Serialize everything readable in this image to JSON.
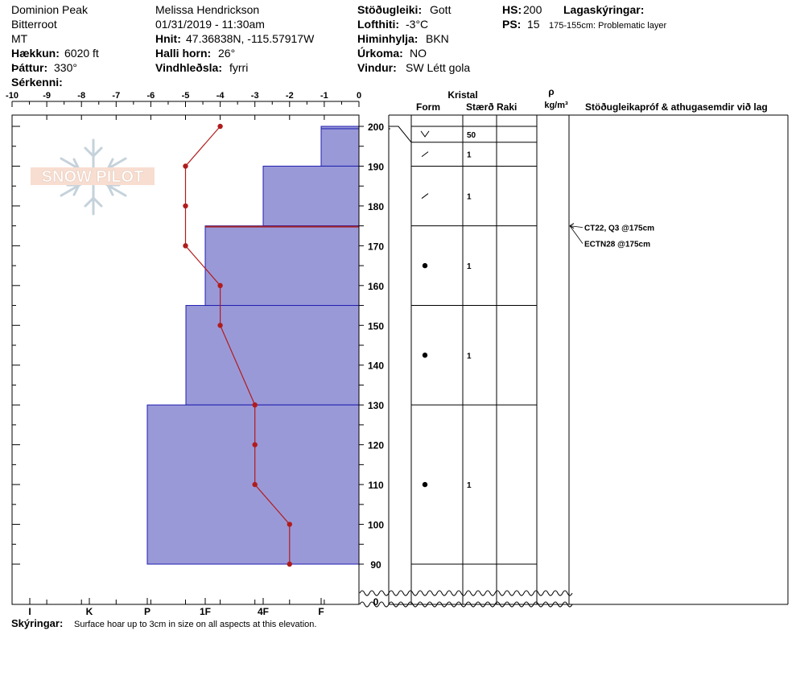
{
  "header": {
    "col1": {
      "location": "Dominion Peak",
      "range": "Bitterroot",
      "state": "MT",
      "elevation_label": "Hækkun:",
      "elevation_value": "6020 ft",
      "aspect_label": "Þáttur:",
      "aspect_value": "330°",
      "special_label": "Sérkenni:"
    },
    "col2": {
      "observer": "Melissa Hendrickson",
      "datetime": "01/31/2019 - 11:30am",
      "coords_label": "Hnit:",
      "coords_value": "47.36838N, -115.57917W",
      "slope_label": "Halli horn:",
      "slope_value": "26°",
      "wind_loading_label": "Vindhleðsla:",
      "wind_loading_value": "fyrri"
    },
    "col3": {
      "stability_label": "Stöðugleiki:",
      "stability_value": "Gott",
      "air_temp_label": "Lofthiti:",
      "air_temp_value": "-3°C",
      "sky_label": "Himinhylja:",
      "sky_value": "BKN",
      "precip_label": "Úrkoma:",
      "precip_value": "NO",
      "wind_label": "Vindur:",
      "wind_value": "SW Létt gola"
    },
    "col4": {
      "hs_label": "HS:",
      "hs_value": "200",
      "ps_label": "PS:",
      "ps_value": "15",
      "layers_label": "Lagaskýringar:",
      "layer_note": "175-155cm: Problematic layer"
    }
  },
  "watermark": "SNOW PILOT",
  "table_headers": {
    "crystal": "Kristal",
    "form": "Form",
    "size": "Stærð",
    "moisture": "Raki",
    "rho": "ρ",
    "density_unit": "kg/m³",
    "tests": "Stöðugleikapróf & athugasemdir við lag"
  },
  "footer": {
    "notes_label": "Skýringar:",
    "notes_value": "Surface hoar up to 3cm in size on all aspects at this elevation."
  },
  "colors": {
    "hardness_fill": "#9a99d8",
    "hardness_stroke": "#1f1fb0",
    "temp_line": "#b01c1c",
    "problem_line": "#a0232a"
  },
  "chart_data": {
    "type": "snow_profile",
    "temperature_axis": {
      "range": [
        -10,
        0
      ],
      "ticks": [
        "-10",
        "-9",
        "-8",
        "-7",
        "-6",
        "-5",
        "-4",
        "-3",
        "-2",
        "-1",
        "0"
      ]
    },
    "height_axis": {
      "range": [
        0,
        200
      ],
      "ticks": [
        "200",
        "190",
        "180",
        "170",
        "160",
        "150",
        "140",
        "130",
        "120",
        "110",
        "100",
        "90",
        "0"
      ]
    },
    "hardness_axis": {
      "ticks": [
        "I",
        "K",
        "P",
        "1F",
        "4F",
        "F"
      ]
    },
    "temperature_profile": [
      {
        "height": 200,
        "temp": -4
      },
      {
        "height": 190,
        "temp": -5
      },
      {
        "height": 180,
        "temp": -5
      },
      {
        "height": 170,
        "temp": -5
      },
      {
        "height": 160,
        "temp": -4
      },
      {
        "height": 150,
        "temp": -4
      },
      {
        "height": 130,
        "temp": -3
      },
      {
        "height": 120,
        "temp": -3
      },
      {
        "height": 110,
        "temp": -3
      },
      {
        "height": 100,
        "temp": -2
      },
      {
        "height": 90,
        "temp": -2
      }
    ],
    "hardness_layers": [
      {
        "top": 200,
        "bottom": 199.4,
        "hardness": "F"
      },
      {
        "top": 199.4,
        "bottom": 190,
        "hardness": "F"
      },
      {
        "top": 190,
        "bottom": 175,
        "hardness": "4F-"
      },
      {
        "top": 175,
        "bottom": 155,
        "hardness": "1F+"
      },
      {
        "top": 155,
        "bottom": 130,
        "hardness": "1F"
      },
      {
        "top": 130,
        "bottom": 90,
        "hardness": "P"
      }
    ],
    "layers": [
      {
        "top": 200,
        "bottom": 196,
        "form": "surface-hoar",
        "size": "50"
      },
      {
        "top": 196,
        "bottom": 190,
        "form": "decomposing",
        "size": "1"
      },
      {
        "top": 190,
        "bottom": 175,
        "form": "decomposing",
        "size": "1"
      },
      {
        "top": 175,
        "bottom": 155,
        "form": "rounded",
        "size": "1"
      },
      {
        "top": 155,
        "bottom": 130,
        "form": "rounded",
        "size": "1"
      },
      {
        "top": 130,
        "bottom": 90,
        "form": "rounded",
        "size": "1"
      }
    ],
    "problem_layer": {
      "top": 175,
      "bottom": 155
    },
    "tests": [
      {
        "height": 175,
        "label": "CT22, Q3 @175cm"
      },
      {
        "height": 175,
        "label": "ECTN28 @175cm"
      }
    ]
  }
}
